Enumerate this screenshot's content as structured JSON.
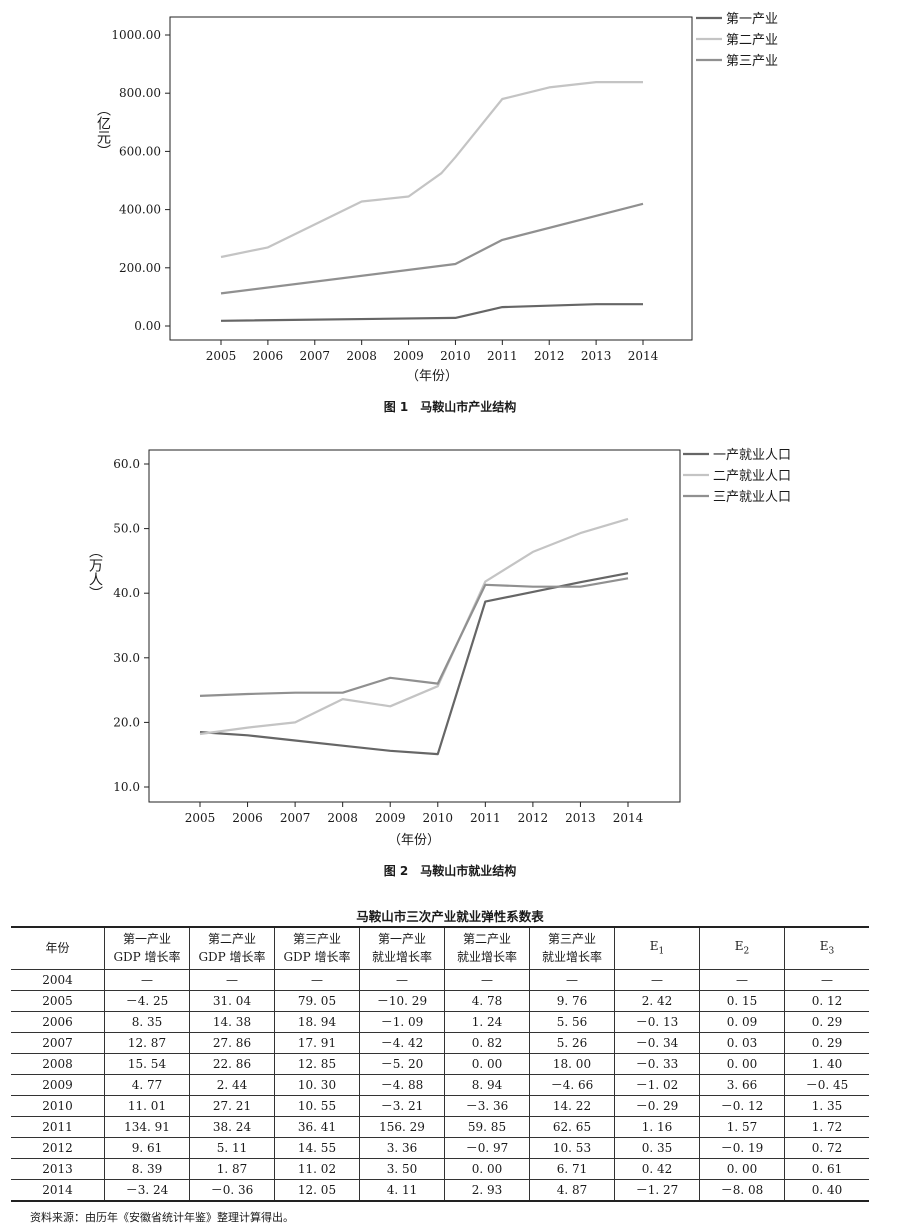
{
  "chart_data": [
    {
      "type": "line",
      "caption": "图 1　马鞍山市产业结构",
      "ylabel": "（亿元）",
      "xlabel": "（年份）",
      "x": [
        "2005",
        "2006",
        "2007",
        "2008",
        "2009",
        "2010",
        "2011",
        "2012",
        "2013",
        "2014"
      ],
      "ylim": [
        0,
        1000
      ],
      "yticks": [
        "0.00",
        "200.00",
        "400.00",
        "600.00",
        "800.00",
        "1000.00"
      ],
      "legend_position": "top-right",
      "series": [
        {
          "name": "第一产业",
          "color": "#666666",
          "points": [
            [
              2005,
              18
            ],
            [
              2010,
              28
            ],
            [
              2011,
              65
            ],
            [
              2013,
              75
            ],
            [
              2014,
              75
            ]
          ]
        },
        {
          "name": "第二产业",
          "color": "#c4c4c4",
          "points": [
            [
              2005,
              237
            ],
            [
              2006,
              270
            ],
            [
              2008,
              428
            ],
            [
              2009,
              445
            ],
            [
              2009.7,
              525
            ],
            [
              2010,
              580
            ],
            [
              2011,
              780
            ],
            [
              2012,
              820
            ],
            [
              2013,
              838
            ],
            [
              2014,
              838
            ]
          ]
        },
        {
          "name": "第三产业",
          "color": "#909090",
          "points": [
            [
              2005,
              112
            ],
            [
              2010,
              213
            ],
            [
              2011,
              296
            ],
            [
              2014,
              420
            ]
          ]
        }
      ]
    },
    {
      "type": "line",
      "caption": "图 2　马鞍山市就业结构",
      "ylabel": "（万人）",
      "xlabel": "（年份）",
      "x": [
        "2005",
        "2006",
        "2007",
        "2008",
        "2009",
        "2010",
        "2011",
        "2012",
        "2013",
        "2014"
      ],
      "ylim": [
        10,
        60
      ],
      "yticks": [
        "10.0",
        "20.0",
        "30.0",
        "40.0",
        "50.0",
        "60.0"
      ],
      "legend_position": "top-right",
      "series": [
        {
          "name": "一产就业人口",
          "color": "#666666",
          "values": [
            18.5,
            18.0,
            17.2,
            16.4,
            15.6,
            15.1,
            38.7,
            40.2,
            41.7,
            43.1
          ]
        },
        {
          "name": "二产就业人口",
          "color": "#c4c4c4",
          "values": [
            18.2,
            19.2,
            20.0,
            23.6,
            22.5,
            25.6,
            41.8,
            46.4,
            49.3,
            51.5
          ]
        },
        {
          "name": "三产就业人口",
          "color": "#909090",
          "values": [
            24.1,
            24.4,
            24.6,
            24.6,
            26.9,
            26.0,
            41.3,
            41.0,
            41.0,
            42.3
          ]
        }
      ]
    }
  ],
  "table": {
    "title": "马鞍山市三次产业就业弹性系数表",
    "headers": [
      {
        "line1": "年份",
        "line2": ""
      },
      {
        "line1": "第一产业",
        "line2": "GDP 增长率"
      },
      {
        "line1": "第二产业",
        "line2": "GDP 增长率"
      },
      {
        "line1": "第三产业",
        "line2": "GDP 增长率"
      },
      {
        "line1": "第一产业",
        "line2": "就业增长率"
      },
      {
        "line1": "第二产业",
        "line2": "就业增长率"
      },
      {
        "line1": "第三产业",
        "line2": "就业增长率"
      },
      {
        "line1": "E",
        "sub": "1"
      },
      {
        "line1": "E",
        "sub": "2"
      },
      {
        "line1": "E",
        "sub": "3"
      }
    ],
    "rows": [
      [
        "2004",
        "—",
        "—",
        "—",
        "—",
        "—",
        "—",
        "—",
        "—",
        "—"
      ],
      [
        "2005",
        "－4. 25",
        "31. 04",
        "79. 05",
        "－10. 29",
        "4. 78",
        "9. 76",
        "2. 42",
        "0. 15",
        "0. 12"
      ],
      [
        "2006",
        "8. 35",
        "14. 38",
        "18. 94",
        "－1. 09",
        "1. 24",
        "5. 56",
        "－0. 13",
        "0. 09",
        "0. 29"
      ],
      [
        "2007",
        "12. 87",
        "27. 86",
        "17. 91",
        "－4. 42",
        "0. 82",
        "5. 26",
        "－0. 34",
        "0. 03",
        "0. 29"
      ],
      [
        "2008",
        "15. 54",
        "22. 86",
        "12. 85",
        "－5. 20",
        "0. 00",
        "18. 00",
        "－0. 33",
        "0. 00",
        "1. 40"
      ],
      [
        "2009",
        "4. 77",
        "2. 44",
        "10. 30",
        "－4. 88",
        "8. 94",
        "－4. 66",
        "－1. 02",
        "3. 66",
        "－0. 45"
      ],
      [
        "2010",
        "11. 01",
        "27. 21",
        "10. 55",
        "－3. 21",
        "－3. 36",
        "14. 22",
        "－0. 29",
        "－0. 12",
        "1. 35"
      ],
      [
        "2011",
        "134. 91",
        "38. 24",
        "36. 41",
        "156. 29",
        "59. 85",
        "62. 65",
        "1. 16",
        "1. 57",
        "1. 72"
      ],
      [
        "2012",
        "9. 61",
        "5. 11",
        "14. 55",
        "3. 36",
        "－0. 97",
        "10. 53",
        "0. 35",
        "－0. 19",
        "0. 72"
      ],
      [
        "2013",
        "8. 39",
        "1. 87",
        "11. 02",
        "3. 50",
        "0. 00",
        "6. 71",
        "0. 42",
        "0. 00",
        "0. 61"
      ],
      [
        "2014",
        "－3. 24",
        "－0. 36",
        "12. 05",
        "4. 11",
        "2. 93",
        "4. 87",
        "－1. 27",
        "－8. 08",
        "0. 40"
      ]
    ],
    "source": "资料来源：由历年《安徽省统计年鉴》整理计算得出。"
  }
}
